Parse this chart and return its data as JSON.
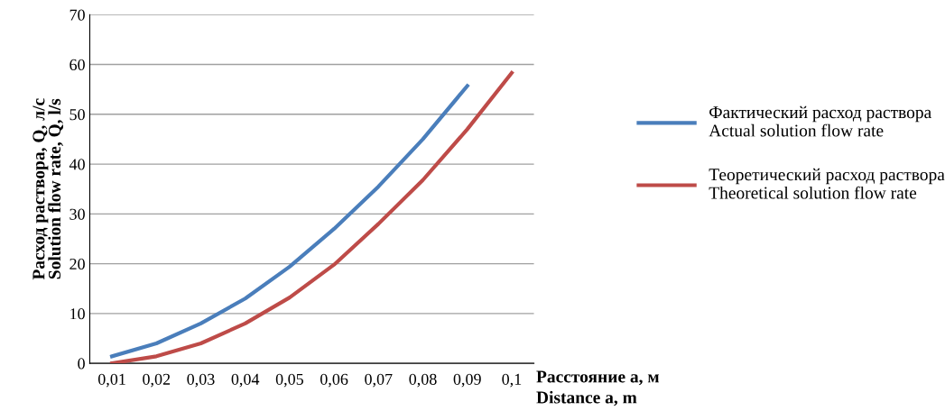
{
  "chart_data": {
    "type": "line",
    "xlabel": "Расстояние a, м\nDistance a, m",
    "ylabel": "Расход раствора, Q, л/с\nSolution flow rate, Q, l/s",
    "categories": [
      "0,01",
      "0,02",
      "0,03",
      "0,04",
      "0,05",
      "0,06",
      "0,07",
      "0,08",
      "0,09",
      "0,1"
    ],
    "series": [
      {
        "name": "Фактический расход раствора\nActual solution flow rate",
        "color": "#4a7ebb",
        "values": [
          1.4,
          4,
          8,
          13,
          19.4,
          27,
          35.5,
          45,
          55.7,
          null
        ]
      },
      {
        "name": "Теоретический расход раствора\nTheoretical solution flow rate",
        "color": "#be4b48",
        "values": [
          0,
          1.4,
          4,
          8,
          13.2,
          19.8,
          28,
          36.8,
          47,
          58.3
        ]
      }
    ],
    "ylim": [
      0,
      70
    ],
    "yticks": [
      0,
      10,
      20,
      30,
      40,
      50,
      60,
      70
    ],
    "grid": "y",
    "legend": "right",
    "marker": "none",
    "line_style": "solid"
  }
}
